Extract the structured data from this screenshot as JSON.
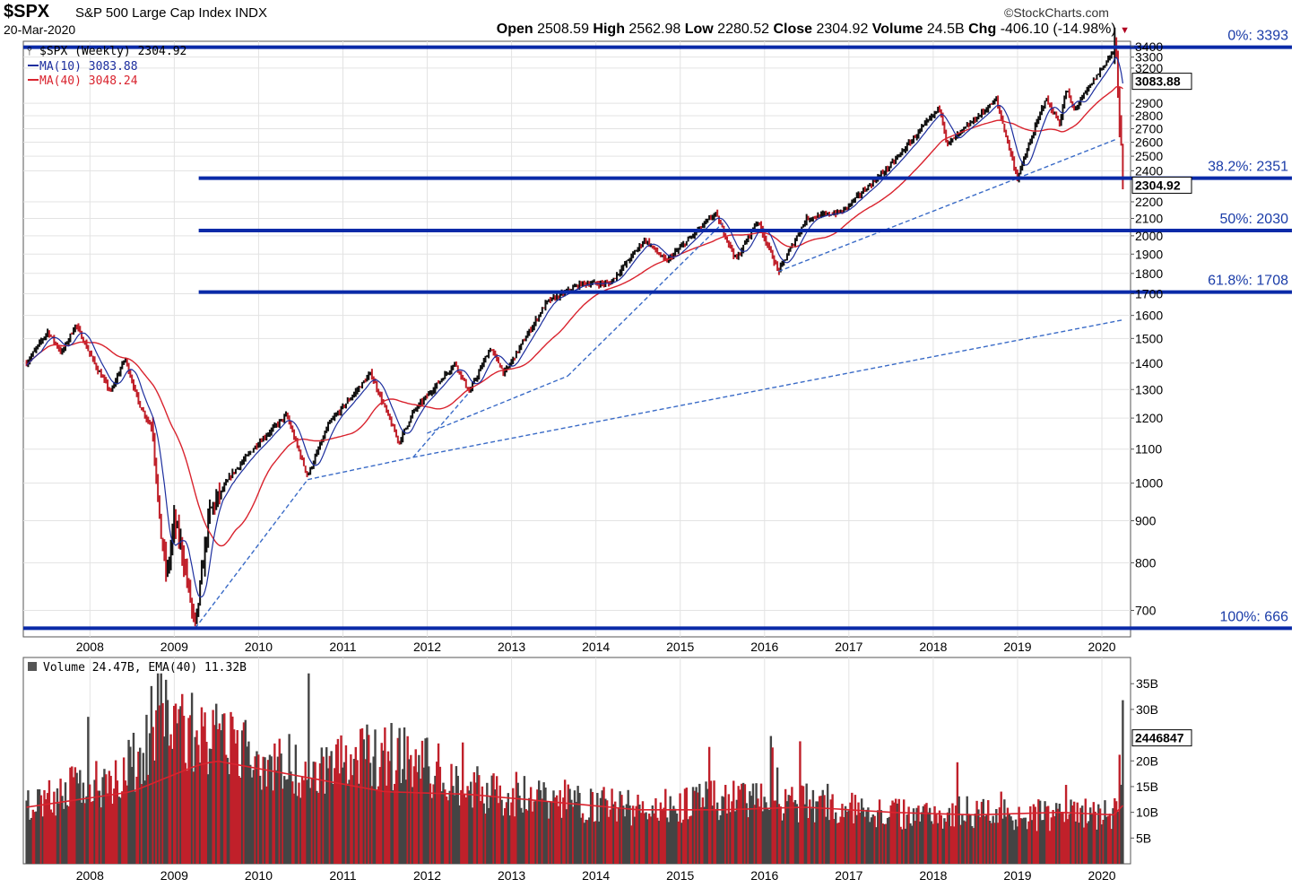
{
  "header": {
    "symbol": "$SPX",
    "index_name": "S&P 500 Large Cap Index INDX",
    "date": "20-Mar-2020",
    "brand": "©StockCharts.com",
    "open_label": "Open",
    "open": "2508.59",
    "high_label": "High",
    "high": "2562.98",
    "low_label": "Low",
    "low": "2280.52",
    "close_label": "Close",
    "close": "2304.92",
    "volume_label": "Volume",
    "volume": "24.5B",
    "chg_label": "Chg",
    "chg": "-406.10 (-14.98%)"
  },
  "legend": {
    "main": "$SPX (Weekly) 2304.92",
    "ma10": "MA(10) 3083.88",
    "ma40": "MA(40) 3048.24"
  },
  "volume_legend": "Volume 24.47B, EMA(40) 11.32B",
  "colors": {
    "fib_line": "#0a2aa8",
    "trend_line": "#3a6bc7",
    "ma10": "#1c2e9e",
    "ma40": "#d9232e",
    "up_bar": "#111111",
    "down_bar": "#c0202a",
    "grid": "#e3e3e3"
  },
  "chart_data": [
    {
      "type": "line",
      "title": "$SPX (Weekly)",
      "y_scale": "log",
      "ylim": [
        650,
        3450
      ],
      "x_range": [
        "2007-03",
        "2020-04"
      ],
      "x_ticks": [
        "2008",
        "2009",
        "2010",
        "2011",
        "2012",
        "2013",
        "2014",
        "2015",
        "2016",
        "2017",
        "2018",
        "2019",
        "2020"
      ],
      "y_ticks": [
        700,
        800,
        900,
        1000,
        1100,
        1200,
        1300,
        1400,
        1500,
        1600,
        1700,
        1800,
        1900,
        2000,
        2100,
        2200,
        2400,
        2500,
        2600,
        2700,
        2800,
        2900,
        3200,
        3300,
        3400
      ],
      "price_path": [
        [
          "2007-03",
          1400
        ],
        [
          "2007-06",
          1530
        ],
        [
          "2007-08",
          1440
        ],
        [
          "2007-10",
          1560
        ],
        [
          "2008-01",
          1380
        ],
        [
          "2008-03",
          1290
        ],
        [
          "2008-05",
          1420
        ],
        [
          "2008-07",
          1250
        ],
        [
          "2008-09",
          1160
        ],
        [
          "2008-10",
          880
        ],
        [
          "2008-11",
          770
        ],
        [
          "2008-12",
          900
        ],
        [
          "2009-01",
          840
        ],
        [
          "2009-03",
          666
        ],
        [
          "2009-05",
          920
        ],
        [
          "2009-08",
          1020
        ],
        [
          "2009-12",
          1120
        ],
        [
          "2010-04",
          1210
        ],
        [
          "2010-07",
          1020
        ],
        [
          "2010-10",
          1180
        ],
        [
          "2011-04",
          1360
        ],
        [
          "2011-08",
          1120
        ],
        [
          "2011-10",
          1220
        ],
        [
          "2012-04",
          1400
        ],
        [
          "2012-06",
          1290
        ],
        [
          "2012-09",
          1460
        ],
        [
          "2012-11",
          1360
        ],
        [
          "2013-05",
          1660
        ],
        [
          "2013-10",
          1750
        ],
        [
          "2014-02",
          1750
        ],
        [
          "2014-07",
          1980
        ],
        [
          "2014-10",
          1860
        ],
        [
          "2015-05",
          2130
        ],
        [
          "2015-08",
          1870
        ],
        [
          "2015-11",
          2090
        ],
        [
          "2016-02",
          1810
        ],
        [
          "2016-06",
          2100
        ],
        [
          "2016-11",
          2140
        ],
        [
          "2017-06",
          2440
        ],
        [
          "2018-01",
          2870
        ],
        [
          "2018-02",
          2580
        ],
        [
          "2018-09",
          2930
        ],
        [
          "2018-12",
          2350
        ],
        [
          "2019-04",
          2940
        ],
        [
          "2019-06",
          2740
        ],
        [
          "2019-07",
          3020
        ],
        [
          "2019-08",
          2840
        ],
        [
          "2020-02",
          3393
        ],
        [
          "2020-03",
          2305
        ]
      ],
      "series": [
        {
          "name": "MA(10)",
          "last": 3083.88
        },
        {
          "name": "MA(40)",
          "last": 3048.24
        }
      ],
      "last_value_labels": [
        "3083.88",
        "2304.92"
      ],
      "fibonacci_levels": [
        {
          "label": "0%: 3393",
          "value": 3393
        },
        {
          "label": "38.2%: 2351",
          "value": 2351
        },
        {
          "label": "50%: 2030",
          "value": 2030
        },
        {
          "label": "61.8%: 1708",
          "value": 1708
        },
        {
          "label": "100%: 666",
          "value": 666
        }
      ],
      "trend_lines": [
        {
          "from": [
            "2009-03",
            666
          ],
          "to": [
            "2010-07",
            1010
          ]
        },
        {
          "from": [
            "2010-07",
            1010
          ],
          "to": [
            "2011-10",
            1075
          ]
        },
        {
          "from": [
            "2011-10",
            1075
          ],
          "to": [
            "2020-03",
            1580
          ]
        },
        {
          "from": [
            "2011-10",
            1075
          ],
          "to": [
            "2012-06",
            1290
          ]
        },
        {
          "from": [
            "2011-12",
            1150
          ],
          "to": [
            "2013-08",
            1350
          ]
        },
        {
          "from": [
            "2013-08",
            1350
          ],
          "to": [
            "2015-06",
            2070
          ]
        },
        {
          "from": [
            "2016-02",
            1810
          ],
          "to": [
            "2018-12",
            2350
          ]
        },
        {
          "from": [
            "2018-12",
            2350
          ],
          "to": [
            "2020-02",
            2620
          ]
        }
      ]
    },
    {
      "type": "bar",
      "title": "Volume",
      "ylim": [
        0,
        38
      ],
      "y_unit": "B",
      "y_ticks": [
        "5B",
        "10B",
        "15B",
        "20B",
        "30B",
        "35B"
      ],
      "x_ticks": [
        "2008",
        "2009",
        "2010",
        "2011",
        "2012",
        "2013",
        "2014",
        "2015",
        "2016",
        "2017",
        "2018",
        "2019",
        "2020"
      ],
      "volume_path": [
        [
          "2007-03",
          12
        ],
        [
          "2007-10",
          15
        ],
        [
          "2008-06",
          19
        ],
        [
          "2008-10",
          30
        ],
        [
          "2009-03",
          26
        ],
        [
          "2009-06",
          24
        ],
        [
          "2010-06",
          19
        ],
        [
          "2011-08",
          22
        ],
        [
          "2012-06",
          15
        ],
        [
          "2013-06",
          13
        ],
        [
          "2014-06",
          11
        ],
        [
          "2015-08",
          13
        ],
        [
          "2016-06",
          12
        ],
        [
          "2017-06",
          10
        ],
        [
          "2018-06",
          10.5
        ],
        [
          "2019-06",
          9.5
        ],
        [
          "2020-02",
          10
        ],
        [
          "2020-03",
          24.47
        ]
      ],
      "ema_path": [
        [
          "2007-03",
          11
        ],
        [
          "2008-06",
          14
        ],
        [
          "2009-03",
          19
        ],
        [
          "2009-06",
          20
        ],
        [
          "2010-06",
          17
        ],
        [
          "2011-06",
          14
        ],
        [
          "2012-06",
          13.5
        ],
        [
          "2013-06",
          12
        ],
        [
          "2014-06",
          10.5
        ],
        [
          "2015-06",
          10.5
        ],
        [
          "2016-06",
          11
        ],
        [
          "2017-06",
          10
        ],
        [
          "2018-06",
          9.5
        ],
        [
          "2019-06",
          10
        ],
        [
          "2020-02",
          9.5
        ],
        [
          "2020-03",
          11.32
        ]
      ],
      "last_value_label": "2446847"
    }
  ]
}
